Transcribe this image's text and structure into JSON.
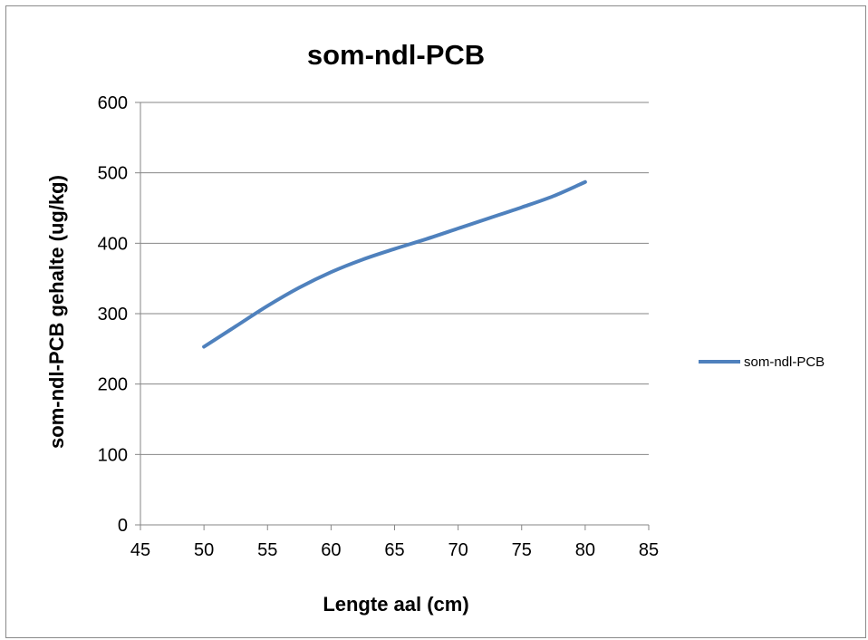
{
  "chart_data": {
    "type": "line",
    "title": "som-ndl-PCB",
    "xlabel": "Lengte aal (cm)",
    "ylabel": "som-ndl-PCB gehalte  (ug/kg)",
    "xlim": [
      45,
      85
    ],
    "ylim": [
      0,
      600
    ],
    "x_ticks": [
      45,
      50,
      55,
      60,
      65,
      70,
      75,
      80,
      85
    ],
    "y_ticks": [
      0,
      100,
      200,
      300,
      400,
      500,
      600
    ],
    "grid": "horizontal",
    "legend_position": "right",
    "series": [
      {
        "name": "som-ndl-PCB",
        "color": "#4F81BD",
        "x": [
          50,
          52.5,
          55,
          57.5,
          60,
          62.5,
          65,
          67.5,
          70,
          72.5,
          75,
          77.5,
          80
        ],
        "y": [
          253,
          282,
          311,
          337,
          359,
          377,
          392,
          406,
          421,
          436,
          451,
          467,
          487
        ]
      }
    ]
  }
}
